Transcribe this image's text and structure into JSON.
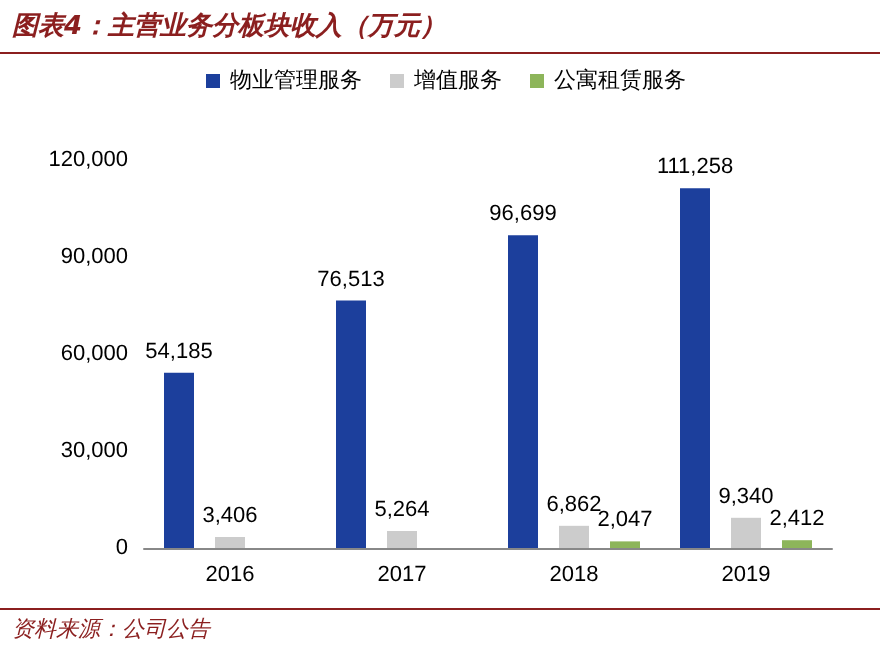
{
  "chart_data": {
    "type": "bar",
    "title": "图表4：主营业务分板块收入（万元）",
    "categories": [
      "2016",
      "2017",
      "2018",
      "2019"
    ],
    "series": [
      {
        "name": "物业管理服务",
        "color": "#1c3f9c",
        "values": [
          54185,
          76513,
          96699,
          111258
        ],
        "value_labels": [
          "54,185",
          "76,513",
          "96,699",
          "111,258"
        ]
      },
      {
        "name": "增值服务",
        "color": "#cccccc",
        "values": [
          3406,
          5264,
          6862,
          9340
        ],
        "value_labels": [
          "3,406",
          "5,264",
          "6,862",
          "9,340"
        ]
      },
      {
        "name": "公寓租赁服务",
        "color": "#8db55a",
        "values": [
          null,
          null,
          2047,
          2412
        ],
        "value_labels": [
          null,
          null,
          "2,047",
          "2,412"
        ]
      }
    ],
    "ylim": [
      0,
      120000
    ],
    "yticks": [
      0,
      {
        "value": 30000,
        "label": "30,000"
      },
      {
        "value": 60000,
        "label": "60,000"
      },
      {
        "value": 90000,
        "label": "90,000"
      },
      {
        "value": 120000,
        "label": "120,000"
      }
    ],
    "grid": false,
    "legend": "top",
    "annotations": [
      "资料来源：公司公告"
    ]
  }
}
